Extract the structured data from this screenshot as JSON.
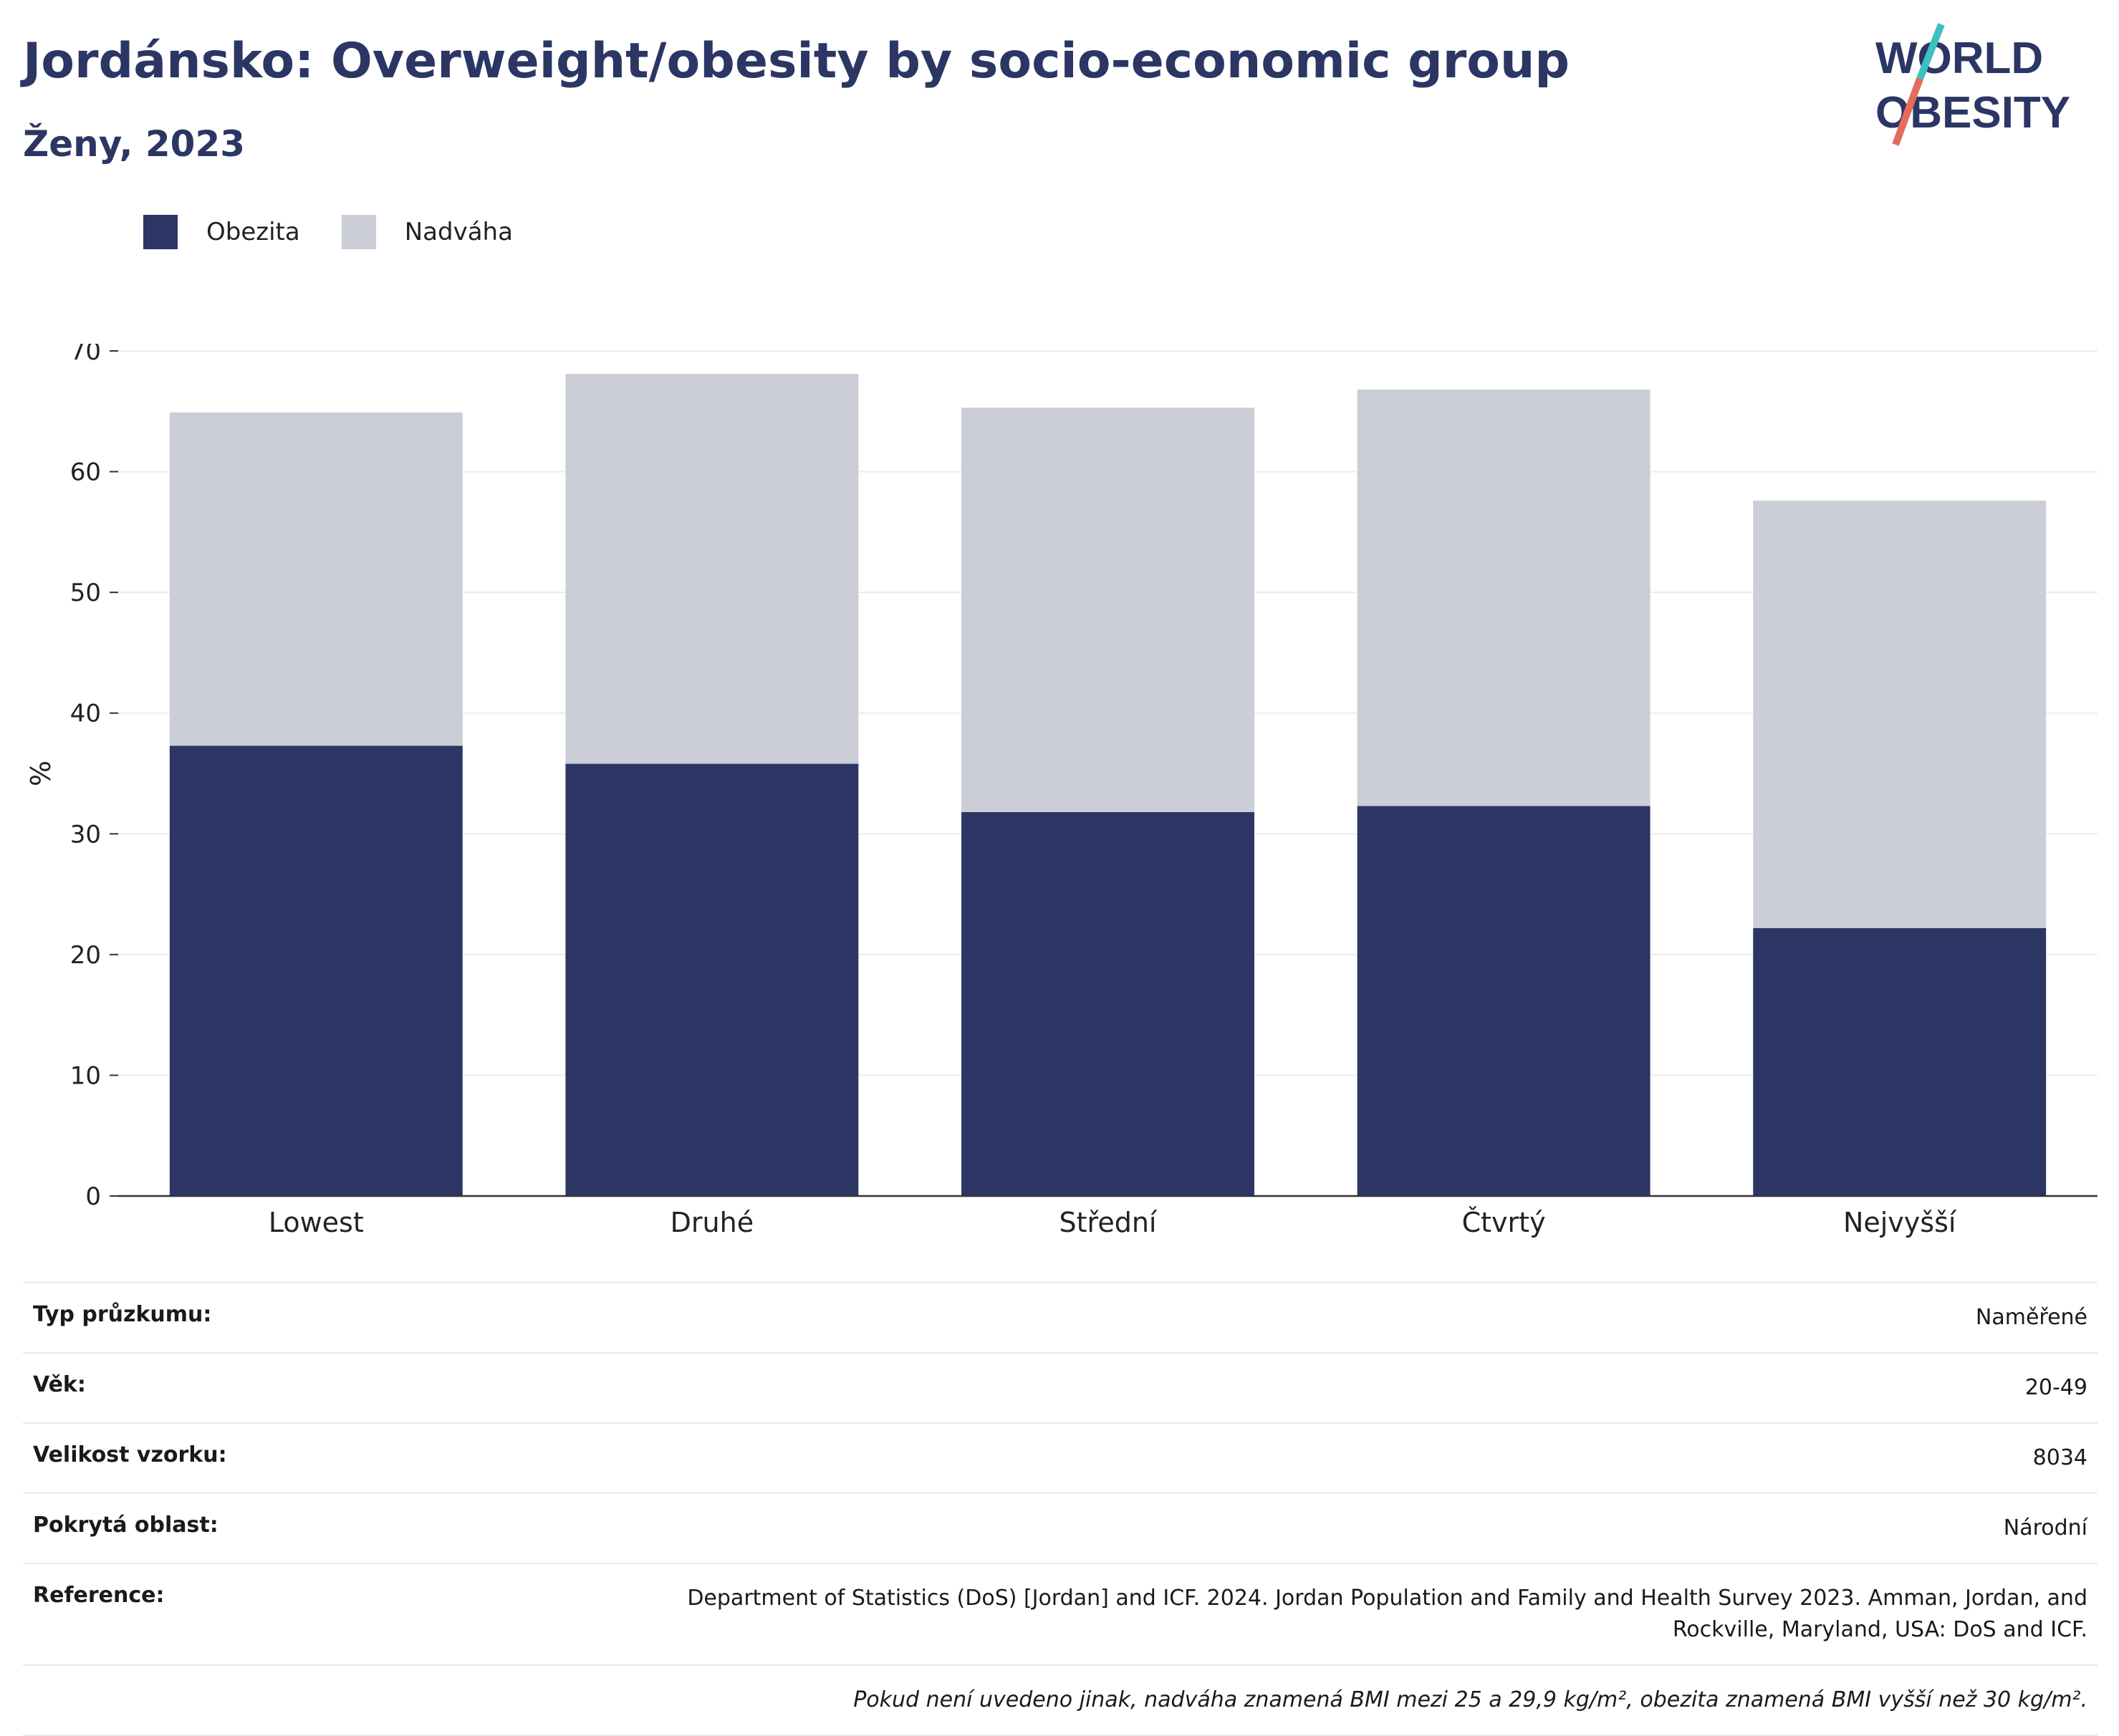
{
  "header": {
    "title": "Jordánsko: Overweight/obesity by socio-economic group",
    "subtitle": "Ženy, 2023"
  },
  "logo": {
    "line1": "WORLD",
    "line2": "OBESITY",
    "slash_color_top": "#3fbfbf",
    "slash_color_bottom": "#e56b5d"
  },
  "colors": {
    "obesity": "#2b3664",
    "overweight": "#cbcdd7",
    "grid": "#ececf0",
    "axis": "#333333"
  },
  "chart_data": {
    "type": "bar",
    "stacked": true,
    "categories": [
      "Lowest",
      "Druhé",
      "Střední",
      "Čtvrtý",
      "Nejvyšší"
    ],
    "series": [
      {
        "name": "Obezita",
        "values": [
          37.3,
          35.8,
          31.8,
          32.3,
          22.2
        ]
      },
      {
        "name": "Nadváha",
        "values": [
          27.6,
          32.3,
          33.5,
          34.5,
          35.4
        ]
      }
    ],
    "ylabel": "%",
    "ylim": [
      0,
      70
    ],
    "yticks": [
      0,
      10,
      20,
      30,
      40,
      50,
      60,
      70
    ],
    "grid": true,
    "legend_position": "top-left"
  },
  "info": {
    "rows": [
      {
        "label": "Typ průzkumu:",
        "value": "Naměřené"
      },
      {
        "label": "Věk:",
        "value": "20-49"
      },
      {
        "label": "Velikost vzorku:",
        "value": "8034"
      },
      {
        "label": "Pokrytá oblast:",
        "value": "Národní"
      },
      {
        "label": "Reference:",
        "value": "Department of Statistics (DoS) [Jordan] and ICF. 2024. Jordan Population and Family and Health Survey 2023. Amman, Jordan, and Rockville, Maryland, USA: DoS and ICF."
      }
    ],
    "note": "Pokud není uvedeno jinak, nadváha znamená BMI mezi 25 a 29,9 kg/m², obezita znamená BMI vyšší než 30 kg/m²."
  }
}
